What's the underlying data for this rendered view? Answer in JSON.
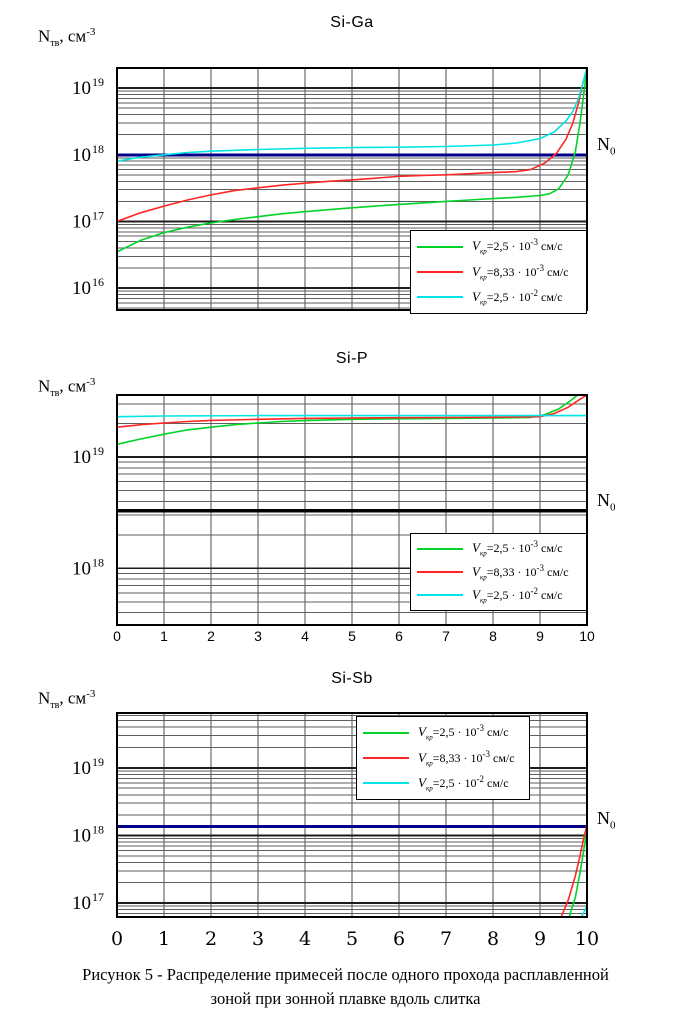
{
  "page": {
    "caption_line1": "Рисунок 5  - Распределение примесей после одного прохода расплавленной",
    "caption_line2": "зоной при зонной плавке вдоль слитка"
  },
  "axis_labels": {
    "y_main": "N",
    "y_sub": "тв",
    "y_unit": ", см",
    "y_exp": "-3",
    "n0_main": "N",
    "n0_sub": "0"
  },
  "legend": {
    "entries": [
      {
        "var": "V",
        "sub": "кр",
        "value": "=2,5 · 10",
        "exp": "-3",
        "unit": " см/с",
        "color": "#00d428"
      },
      {
        "var": "V",
        "sub": "кр",
        "value": "=8,33 · 10",
        "exp": "-3",
        "unit": " см/с",
        "color": "#ff2626"
      },
      {
        "var": "V",
        "sub": "кр",
        "value": "=2,5 · 10",
        "exp": "-2",
        "unit": " см/с",
        "color": "#00e5e5"
      }
    ]
  },
  "chart_data": [
    {
      "type": "line",
      "title": "Si-Ga",
      "ylabel": "Nтв, см^-3",
      "xlim": [
        0,
        10
      ],
      "ylim": [
        4700000000000000.0,
        2e+19
      ],
      "grid": true,
      "legend_position": "bottom-right",
      "y_ticks": [
        {
          "base": "10",
          "exp": "19",
          "value": 1e+19
        },
        {
          "base": "10",
          "exp": "18",
          "value": 1e+18
        },
        {
          "base": "10",
          "exp": "17",
          "value": 1e+17
        },
        {
          "base": "10",
          "exp": "16",
          "value": 1e+16
        }
      ],
      "x_tick_labels": [],
      "n0": {
        "label": "N0",
        "value": 1e+18,
        "color": "#00008b",
        "width": 3
      },
      "series": [
        {
          "id": "v1",
          "name": "Vкр=2,5·10^-3 см/с",
          "color": "#00d428",
          "points": [
            [
              0,
              3.5e+16
            ],
            [
              0.5,
              5.2e+16
            ],
            [
              1,
              6.8e+16
            ],
            [
              1.5,
              8.2e+16
            ],
            [
              2,
              9.5e+16
            ],
            [
              2.5,
              1.07e+17
            ],
            [
              3,
              1.18e+17
            ],
            [
              3.5,
              1.3e+17
            ],
            [
              4,
              1.4e+17
            ],
            [
              4.5,
              1.5e+17
            ],
            [
              5,
              1.6e+17
            ],
            [
              5.5,
              1.7e+17
            ],
            [
              6,
              1.8e+17
            ],
            [
              6.5,
              1.9e+17
            ],
            [
              7,
              2e+17
            ],
            [
              7.5,
              2.1e+17
            ],
            [
              8,
              2.2e+17
            ],
            [
              8.5,
              2.3e+17
            ],
            [
              9,
              2.45e+17
            ],
            [
              9.2,
              2.6e+17
            ],
            [
              9.4,
              3.1e+17
            ],
            [
              9.6,
              5e+17
            ],
            [
              9.75,
              1.1e+18
            ],
            [
              9.85,
              3e+18
            ],
            [
              9.93,
              8e+18
            ],
            [
              10,
              2e+19
            ]
          ]
        },
        {
          "id": "v2",
          "name": "Vкр=8,33·10^-3 см/с",
          "color": "#ff2626",
          "points": [
            [
              0,
              1e+17
            ],
            [
              0.5,
              1.35e+17
            ],
            [
              1,
              1.7e+17
            ],
            [
              1.5,
              2.1e+17
            ],
            [
              2,
              2.5e+17
            ],
            [
              2.5,
              2.9e+17
            ],
            [
              3,
              3.2e+17
            ],
            [
              3.5,
              3.5e+17
            ],
            [
              4,
              3.75e+17
            ],
            [
              4.5,
              4e+17
            ],
            [
              5,
              4.2e+17
            ],
            [
              5.5,
              4.45e+17
            ],
            [
              6,
              4.75e+17
            ],
            [
              6.5,
              4.9e+17
            ],
            [
              7,
              5e+17
            ],
            [
              7.5,
              5.2e+17
            ],
            [
              8,
              5.4e+17
            ],
            [
              8.5,
              5.6e+17
            ],
            [
              8.8,
              6e+17
            ],
            [
              9.1,
              7.5e+17
            ],
            [
              9.35,
              1.05e+18
            ],
            [
              9.55,
              1.7e+18
            ],
            [
              9.7,
              3e+18
            ],
            [
              9.82,
              6e+18
            ],
            [
              9.9,
              1.1e+19
            ],
            [
              10,
              2e+19
            ]
          ]
        },
        {
          "id": "v3",
          "name": "Vкр=2,5·10^-2 см/с",
          "color": "#00e5e5",
          "points": [
            [
              0,
              8e+17
            ],
            [
              0.5,
              9.2e+17
            ],
            [
              1,
              1e+18
            ],
            [
              1.5,
              1.08e+18
            ],
            [
              2,
              1.13e+18
            ],
            [
              3,
              1.2e+18
            ],
            [
              4,
              1.25e+18
            ],
            [
              5,
              1.28e+18
            ],
            [
              6,
              1.3e+18
            ],
            [
              7,
              1.33e+18
            ],
            [
              8,
              1.4e+18
            ],
            [
              8.5,
              1.5e+18
            ],
            [
              9,
              1.75e+18
            ],
            [
              9.3,
              2.2e+18
            ],
            [
              9.55,
              3.2e+18
            ],
            [
              9.7,
              4.5e+18
            ],
            [
              9.82,
              7e+18
            ],
            [
              9.9,
              1.1e+19
            ],
            [
              10,
              2e+19
            ]
          ]
        }
      ]
    },
    {
      "type": "line",
      "title": "Si-P",
      "ylabel": "Nтв, см^-3",
      "xlim": [
        0,
        10
      ],
      "ylim": [
        3.1e+17,
        3.6e+19
      ],
      "grid": true,
      "legend_position": "bottom-right",
      "y_ticks": [
        {
          "base": "10",
          "exp": "19",
          "value": 1e+19
        },
        {
          "base": "10",
          "exp": "18",
          "value": 1e+18
        }
      ],
      "x_tick_labels": [
        "0",
        "1",
        "2",
        "3",
        "4",
        "5",
        "6",
        "7",
        "8",
        "9",
        "10"
      ],
      "n0": {
        "label": "N0",
        "value": 3.3e+18,
        "color": "#000000",
        "width": 3.5
      },
      "series": [
        {
          "id": "v1",
          "name": "Vкр=2,5·10^-3 см/с",
          "color": "#00d428",
          "points": [
            [
              0,
              1.3e+19
            ],
            [
              0.5,
              1.45e+19
            ],
            [
              1,
              1.6e+19
            ],
            [
              1.5,
              1.75e+19
            ],
            [
              2,
              1.85e+19
            ],
            [
              2.5,
              1.95e+19
            ],
            [
              3,
              2.02e+19
            ],
            [
              3.5,
              2.08e+19
            ],
            [
              4,
              2.12e+19
            ],
            [
              5,
              2.18e+19
            ],
            [
              6,
              2.2e+19
            ],
            [
              7,
              2.22e+19
            ],
            [
              8,
              2.24e+19
            ],
            [
              8.8,
              2.26e+19
            ],
            [
              9.1,
              2.4e+19
            ],
            [
              9.4,
              2.7e+19
            ],
            [
              9.65,
              3.2e+19
            ],
            [
              9.8,
              3.6e+19
            ]
          ]
        },
        {
          "id": "v2",
          "name": "Vкр=8,33·10^-3 см/с",
          "color": "#ff2626",
          "points": [
            [
              0,
              1.85e+19
            ],
            [
              0.5,
              1.95e+19
            ],
            [
              1,
              2.02e+19
            ],
            [
              1.5,
              2.08e+19
            ],
            [
              2,
              2.13e+19
            ],
            [
              3,
              2.18e+19
            ],
            [
              4,
              2.22e+19
            ],
            [
              5,
              2.24e+19
            ],
            [
              6,
              2.25e+19
            ],
            [
              7,
              2.26e+19
            ],
            [
              8,
              2.27e+19
            ],
            [
              9,
              2.3e+19
            ],
            [
              9.3,
              2.45e+19
            ],
            [
              9.6,
              2.8e+19
            ],
            [
              9.85,
              3.3e+19
            ],
            [
              10,
              3.6e+19
            ]
          ]
        },
        {
          "id": "v3",
          "name": "Vкр=2,5·10^-2 см/с",
          "color": "#00e5e5",
          "points": [
            [
              0,
              2.3e+19
            ],
            [
              1,
              2.33e+19
            ],
            [
              3,
              2.35e+19
            ],
            [
              6,
              2.35e+19
            ],
            [
              10,
              2.35e+19
            ]
          ]
        }
      ]
    },
    {
      "type": "line",
      "title": "Si-Sb",
      "ylabel": "Nтв, см^-3",
      "xlim": [
        0,
        10
      ],
      "ylim": [
        6.2e+16,
        6.5e+19
      ],
      "grid": true,
      "legend_position": "top-center",
      "y_ticks": [
        {
          "base": "10",
          "exp": "19",
          "value": 1e+19
        },
        {
          "base": "10",
          "exp": "18",
          "value": 1e+18
        },
        {
          "base": "10",
          "exp": "17",
          "value": 1e+17
        }
      ],
      "x_tick_labels": [
        "0",
        "1",
        "2",
        "3",
        "4",
        "5",
        "6",
        "7",
        "8",
        "9",
        "10"
      ],
      "n0": {
        "label": "N0",
        "value": 1.35e+18,
        "color": "#00008b",
        "width": 3
      },
      "series": [
        {
          "id": "v1",
          "name": "Vкр=2,5·10^-3 см/с",
          "color": "#00d428",
          "points": [
            [
              9.62,
              6.2e+16
            ],
            [
              9.75,
              1.2e+17
            ],
            [
              9.85,
              2.8e+17
            ],
            [
              9.93,
              6e+17
            ],
            [
              10,
              1.2e+18
            ]
          ]
        },
        {
          "id": "v2",
          "name": "Vкр=8,33·10^-3 см/с",
          "color": "#ff2626",
          "points": [
            [
              9.45,
              6.2e+16
            ],
            [
              9.6,
              1.1e+17
            ],
            [
              9.75,
              2.5e+17
            ],
            [
              9.85,
              5e+17
            ],
            [
              9.93,
              9e+17
            ],
            [
              10,
              1.45e+18
            ]
          ]
        },
        {
          "id": "v3",
          "name": "Vкр=2,5·10^-2 см/с",
          "color": "#00e5e5",
          "points": [
            [
              9.88,
              6.2e+16
            ],
            [
              10,
              9e+16
            ]
          ]
        }
      ]
    }
  ]
}
